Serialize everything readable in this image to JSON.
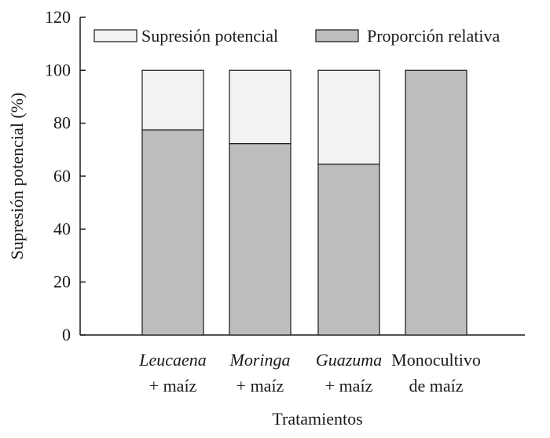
{
  "chart_data": {
    "type": "bar",
    "stacked": true,
    "categories": [
      {
        "line1": "Leucaena",
        "line1_italic": true,
        "line2": "+ maíz"
      },
      {
        "line1": "Moringa",
        "line1_italic": true,
        "line2": "+ maíz"
      },
      {
        "line1": "Guazuma",
        "line1_italic": true,
        "line2": "+ maíz"
      },
      {
        "line1": "Monocultivo",
        "line1_italic": false,
        "line2": "de maíz"
      }
    ],
    "series": [
      {
        "name": "Proporción relativa",
        "color": "#bdbdbd",
        "values": [
          77.5,
          72.3,
          64.5,
          100
        ]
      },
      {
        "name": "Supresión potencial",
        "color": "#f2f2f2",
        "values": [
          22.5,
          27.7,
          35.5,
          0
        ]
      }
    ],
    "legend_order": [
      "Supresión potencial",
      "Proporción relativa"
    ],
    "legend_position": "top",
    "ylabel": "Supresión potencial (%)",
    "xlabel": "Tratamientos",
    "ylim": [
      0,
      120
    ],
    "yticks": [
      0,
      20,
      40,
      60,
      80,
      100,
      120
    ],
    "grid": false
  }
}
